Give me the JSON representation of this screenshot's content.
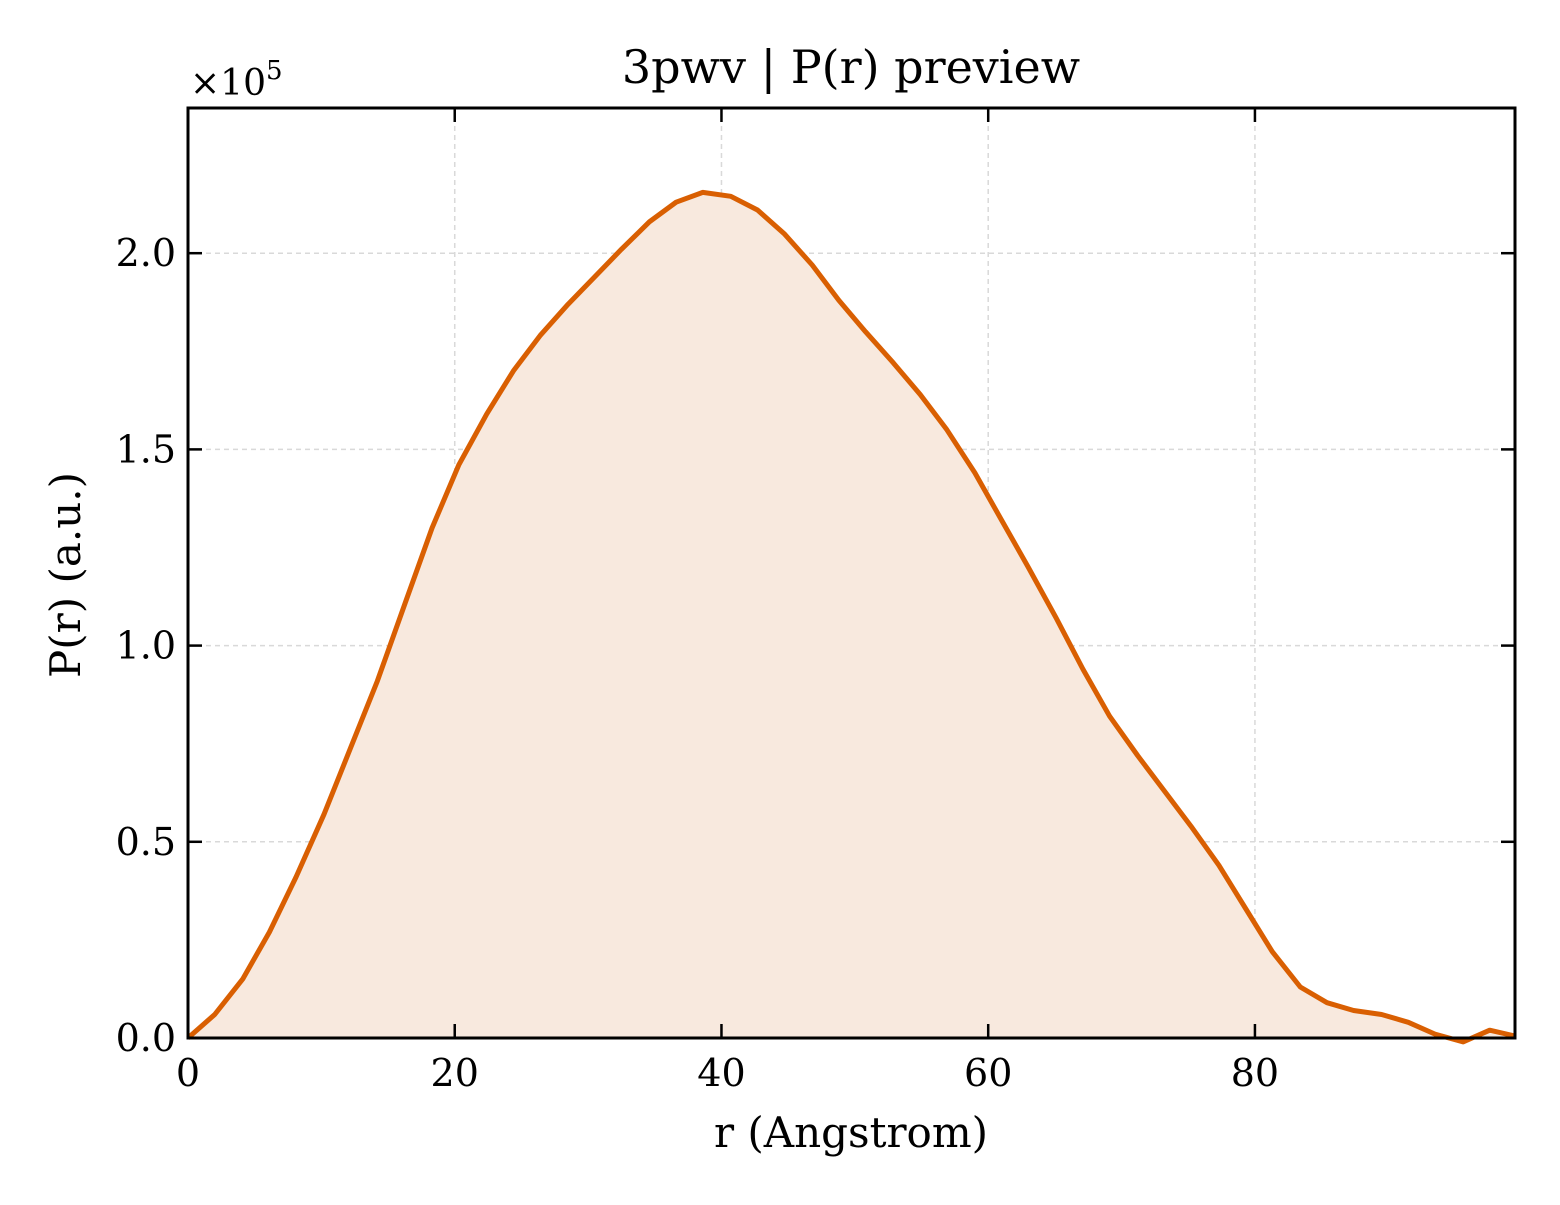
{
  "chart_data": {
    "type": "area",
    "title": "3pwv | P(r) preview",
    "xlabel": "r (Angstrom)",
    "ylabel": "P(r) (a.u.)",
    "y_multiplier_label": "×10",
    "y_multiplier_exponent": "5",
    "y_scale": 100000,
    "xlim": [
      0,
      99.5
    ],
    "ylim": [
      0,
      2.37
    ],
    "x_ticks": [
      0,
      20,
      40,
      60,
      80
    ],
    "x_tick_labels": [
      "0",
      "20",
      "40",
      "60",
      "80"
    ],
    "y_ticks": [
      0,
      0.5,
      1.0,
      1.5,
      2.0
    ],
    "y_tick_labels": [
      "0.0",
      "0.5",
      "1.0",
      "1.5",
      "2.0"
    ],
    "grid": true,
    "line_color": "#d95f02",
    "fill_color": "#f8e9de",
    "series": [
      {
        "x": [
          0,
          2.0,
          4.1,
          6.1,
          8.1,
          10.2,
          12.2,
          14.2,
          16.3,
          18.3,
          20.3,
          22.4,
          24.4,
          26.4,
          28.5,
          30.5,
          32.5,
          34.6,
          36.6,
          38.6,
          40.7,
          42.7,
          44.7,
          46.8,
          48.8,
          50.8,
          52.9,
          54.9,
          56.9,
          59.0,
          61.0,
          63.0,
          65.1,
          67.1,
          69.1,
          71.2,
          73.2,
          75.2,
          77.3,
          79.3,
          81.3,
          83.4,
          85.4,
          87.4,
          89.5,
          91.5,
          93.5,
          95.6,
          97.6,
          99.5
        ],
        "y": [
          0.0,
          0.06,
          0.15,
          0.27,
          0.41,
          0.57,
          0.74,
          0.91,
          1.11,
          1.3,
          1.46,
          1.59,
          1.7,
          1.79,
          1.87,
          1.94,
          2.01,
          2.08,
          2.13,
          2.155,
          2.145,
          2.11,
          2.05,
          1.97,
          1.88,
          1.8,
          1.72,
          1.64,
          1.55,
          1.44,
          1.32,
          1.2,
          1.07,
          0.94,
          0.82,
          0.72,
          0.63,
          0.54,
          0.44,
          0.33,
          0.22,
          0.13,
          0.09,
          0.07,
          0.06,
          0.04,
          0.01,
          -0.01,
          0.02,
          0.005
        ]
      }
    ]
  }
}
